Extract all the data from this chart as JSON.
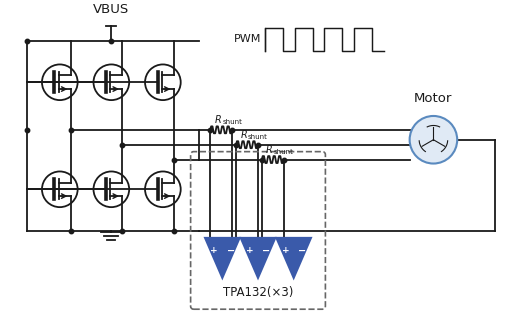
{
  "bg_color": "#ffffff",
  "line_color": "#1a1a1a",
  "blue_color": "#3a5aaa",
  "motor_fill": "#e0eaf5",
  "motor_edge": "#5a8abf",
  "title": "VBUS",
  "pwm_label": "PWM",
  "motor_label": "Motor",
  "amp_label": "TPA132(×3)",
  "rshunt_label": "R",
  "rshunt_sub": "shunt",
  "lw": 1.3,
  "tr_r": 18
}
